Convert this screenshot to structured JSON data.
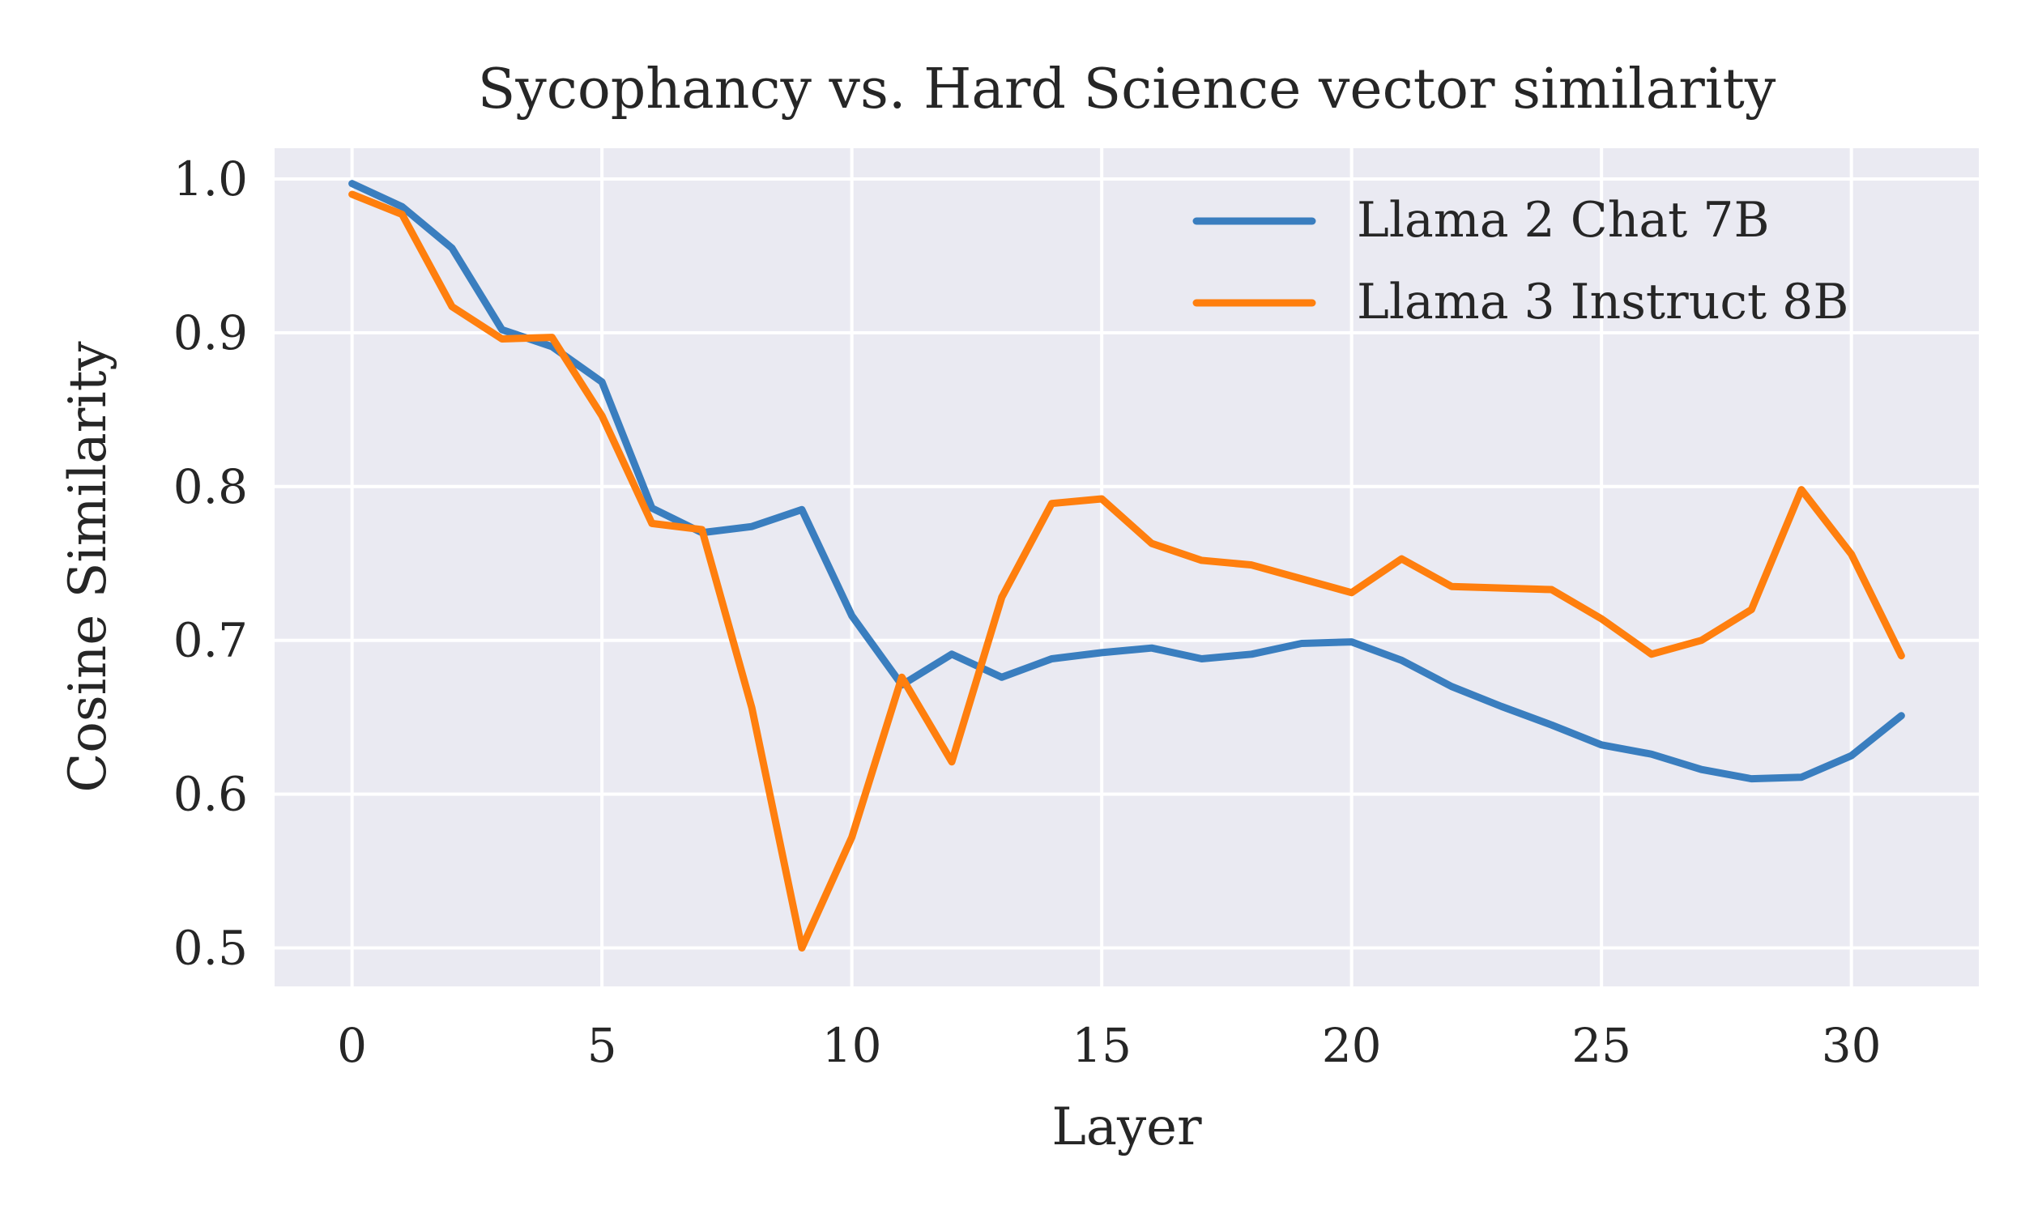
{
  "chart_data": {
    "type": "line",
    "title": "Sycophancy vs. Hard Science vector similarity",
    "xlabel": "Layer",
    "ylabel": "Cosine Similarity",
    "xlim": [
      -1.55,
      32.55
    ],
    "ylim": [
      0.475,
      1.02
    ],
    "xticks": [
      0,
      5,
      10,
      15,
      20,
      25,
      30
    ],
    "yticks": [
      0.5,
      0.6,
      0.7,
      0.8,
      0.9,
      1.0
    ],
    "ytick_labels": [
      "0.5",
      "0.6",
      "0.7",
      "0.8",
      "0.9",
      "1.0"
    ],
    "grid": true,
    "legend_position": "top-right",
    "x": [
      0,
      1,
      2,
      3,
      4,
      5,
      6,
      7,
      8,
      9,
      10,
      11,
      12,
      13,
      14,
      15,
      16,
      17,
      18,
      19,
      20,
      21,
      22,
      23,
      24,
      25,
      26,
      27,
      28,
      29,
      30,
      31
    ],
    "series": [
      {
        "name": "Llama 2 Chat 7B",
        "color": "#3a7ebf",
        "values": [
          0.997,
          0.982,
          0.955,
          0.902,
          0.891,
          0.868,
          0.786,
          0.77,
          0.774,
          0.785,
          0.716,
          0.671,
          0.691,
          0.676,
          0.688,
          0.692,
          0.695,
          0.688,
          0.691,
          0.698,
          0.699,
          0.687,
          0.67,
          0.657,
          0.645,
          0.632,
          0.626,
          0.616,
          0.61,
          0.611,
          0.625,
          0.651
        ]
      },
      {
        "name": "Llama 3 Instruct 8B",
        "color": "#ff7f0e",
        "values": [
          0.99,
          0.977,
          0.917,
          0.896,
          0.897,
          0.846,
          0.776,
          0.772,
          0.656,
          0.5,
          0.572,
          0.676,
          0.621,
          0.728,
          0.789,
          0.792,
          0.763,
          0.752,
          0.749,
          0.74,
          0.731,
          0.753,
          0.735,
          0.734,
          0.733,
          0.714,
          0.691,
          0.7,
          0.72,
          0.798,
          0.756,
          0.69
        ]
      }
    ]
  }
}
